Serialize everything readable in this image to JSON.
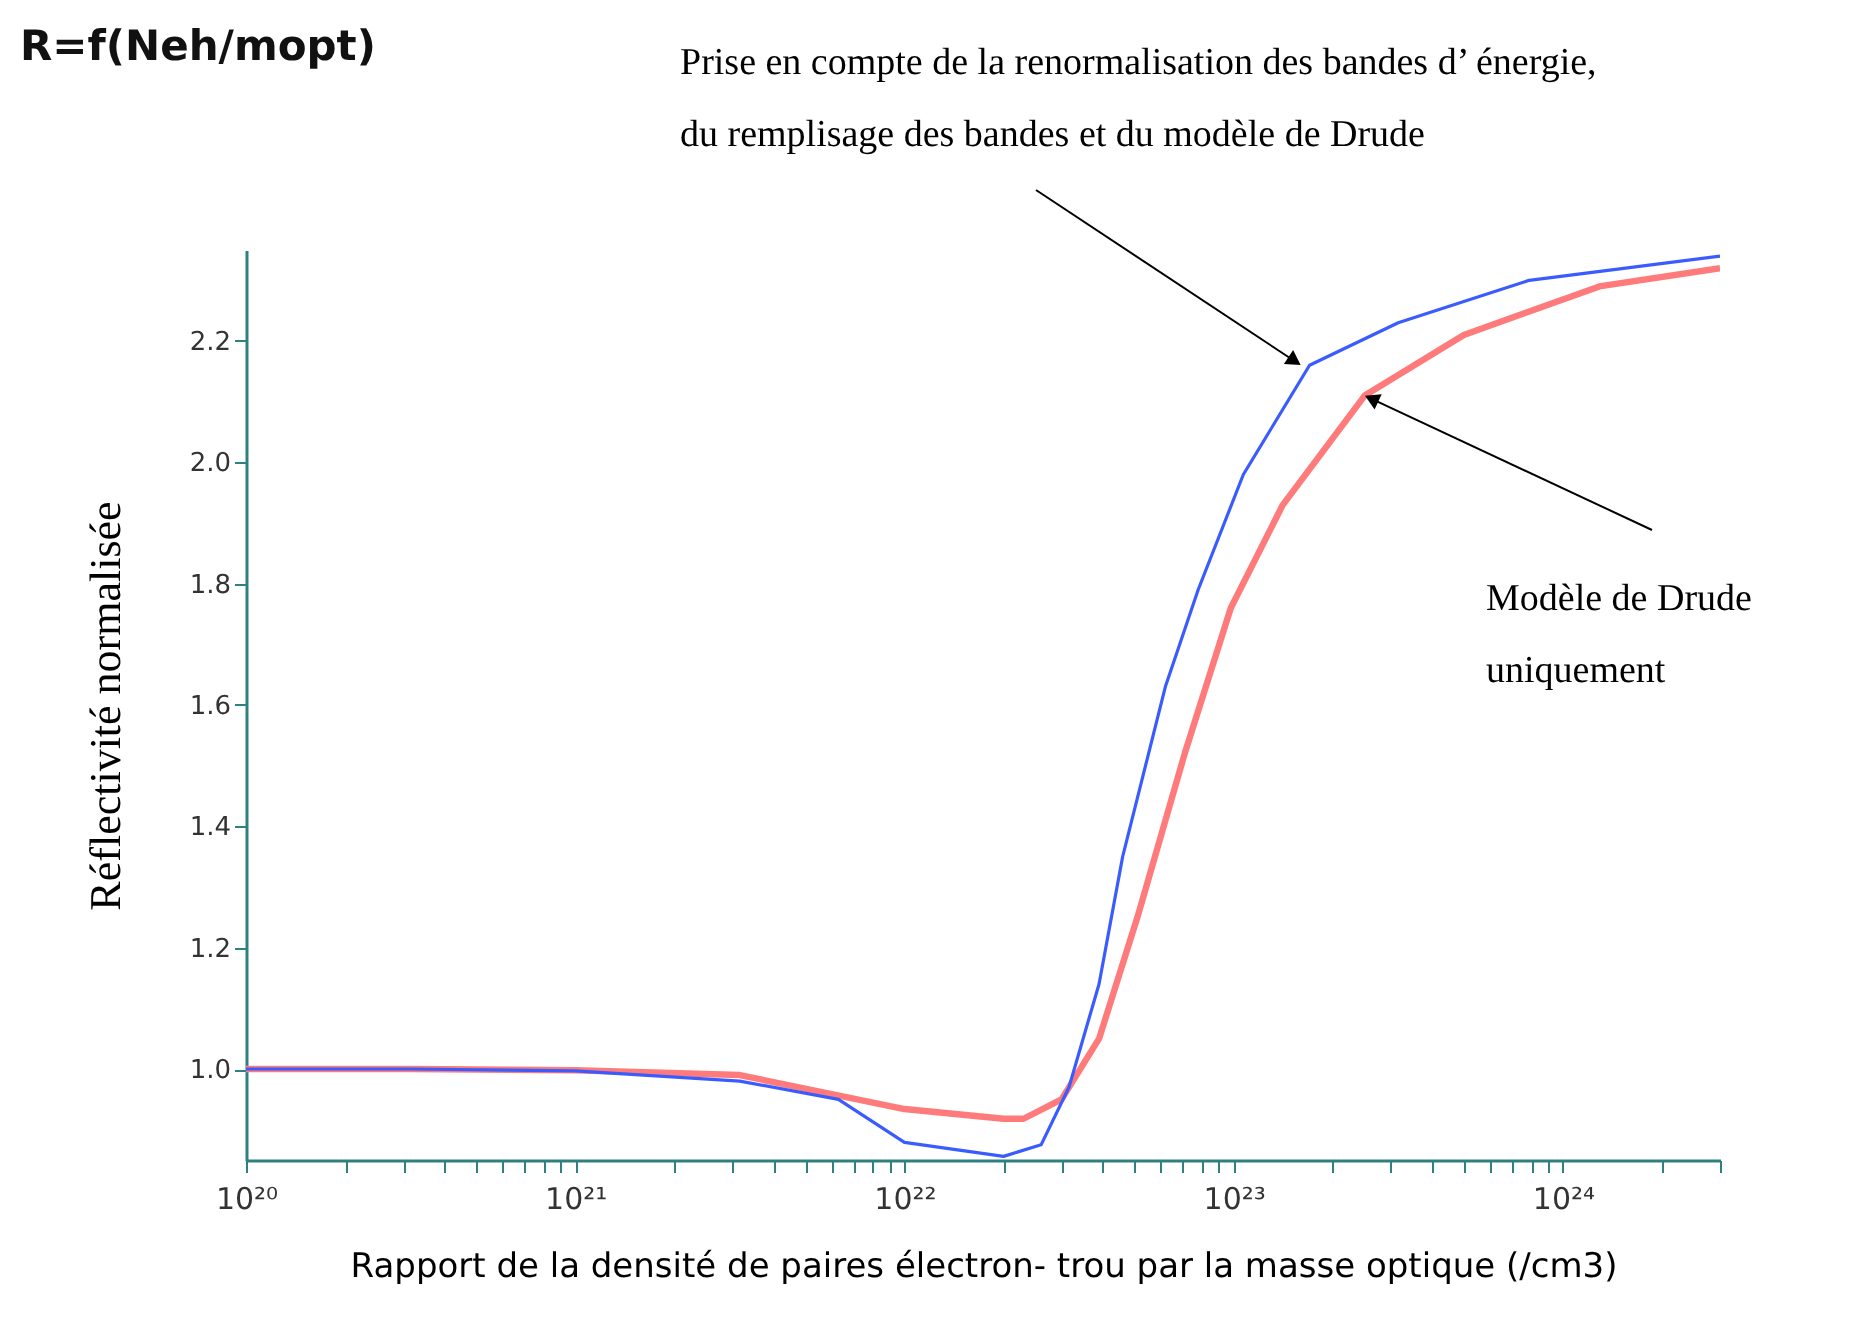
{
  "chart_data": {
    "type": "line",
    "title": "R=f(Neh/mopt)",
    "xlabel": "Rapport de la densité de paires électron- trou par la masse optique (/cm3)",
    "ylabel": "Réflectivité normalisée",
    "log": "x",
    "grid": false,
    "marker": "none",
    "line_style": "solid",
    "xlim": [
      1e+20,
      3e+24
    ],
    "ylim": [
      0.85,
      2.35
    ],
    "xticks": [
      {
        "value": 1e+20,
        "label": "10²⁰"
      },
      {
        "value": 2e+20,
        "label": null
      },
      {
        "value": 3e+20,
        "label": null
      },
      {
        "value": 4e+20,
        "label": null
      },
      {
        "value": 5e+20,
        "label": null
      },
      {
        "value": 6e+20,
        "label": null
      },
      {
        "value": 7e+20,
        "label": null
      },
      {
        "value": 8e+20,
        "label": null
      },
      {
        "value": 9e+20,
        "label": null
      },
      {
        "value": 1e+21,
        "label": "10²¹"
      },
      {
        "value": 2e+21,
        "label": null
      },
      {
        "value": 3e+21,
        "label": null
      },
      {
        "value": 4e+21,
        "label": null
      },
      {
        "value": 5e+21,
        "label": null
      },
      {
        "value": 6e+21,
        "label": null
      },
      {
        "value": 7e+21,
        "label": null
      },
      {
        "value": 8e+21,
        "label": null
      },
      {
        "value": 9e+21,
        "label": null
      },
      {
        "value": 1e+22,
        "label": "10²²"
      },
      {
        "value": 2e+22,
        "label": null
      },
      {
        "value": 3e+22,
        "label": null
      },
      {
        "value": 4e+22,
        "label": null
      },
      {
        "value": 5e+22,
        "label": null
      },
      {
        "value": 6e+22,
        "label": null
      },
      {
        "value": 7e+22,
        "label": null
      },
      {
        "value": 8e+22,
        "label": null
      },
      {
        "value": 9e+22,
        "label": null
      },
      {
        "value": 1e+23,
        "label": "10²³"
      },
      {
        "value": 2e+23,
        "label": null
      },
      {
        "value": 3e+23,
        "label": null
      },
      {
        "value": 4e+23,
        "label": null
      },
      {
        "value": 5e+23,
        "label": null
      },
      {
        "value": 6e+23,
        "label": null
      },
      {
        "value": 7e+23,
        "label": null
      },
      {
        "value": 8e+23,
        "label": null
      },
      {
        "value": 9e+23,
        "label": null
      },
      {
        "value": 1e+24,
        "label": "10²⁴"
      },
      {
        "value": 2e+24,
        "label": null
      },
      {
        "value": 3e+24,
        "label": null
      }
    ],
    "yticks": [
      {
        "value": 1.0,
        "label": "1.0"
      },
      {
        "value": 1.2,
        "label": "1.2"
      },
      {
        "value": 1.4,
        "label": "1.4"
      },
      {
        "value": 1.6,
        "label": "1.6"
      },
      {
        "value": 1.8,
        "label": "1.8"
      },
      {
        "value": 2.0,
        "label": "2.0"
      },
      {
        "value": 2.2,
        "label": "2.2"
      }
    ],
    "series": [
      {
        "color": "#ff7b7b",
        "x": [
          1e+20,
          3.16e+20,
          1e+21,
          3.16e+21,
          1e+22,
          2e+22,
          2.3e+22,
          3e+22,
          3.9e+22,
          5.1e+22,
          7.1e+22,
          9.8e+22,
          1.41e+23,
          2.5e+23,
          5e+23,
          1.29e+24,
          3e+24
        ],
        "values": [
          1.0,
          1.0,
          0.998,
          0.99,
          0.934,
          0.918,
          0.918,
          0.95,
          1.05,
          1.25,
          1.52,
          1.76,
          1.93,
          2.11,
          2.21,
          2.29,
          2.32
        ]
      },
      {
        "color": "#3a5cff",
        "x": [
          1e+20,
          3.16e+20,
          1e+21,
          3.16e+21,
          6.3e+21,
          1e+22,
          2e+22,
          2.6e+22,
          3.16e+22,
          3.9e+22,
          4.6e+22,
          6.2e+22,
          7.8e+22,
          1.07e+23,
          1.7e+23,
          3.16e+23,
          7.9e+23,
          3e+24
        ],
        "values": [
          1.0,
          1.0,
          0.997,
          0.98,
          0.95,
          0.879,
          0.856,
          0.875,
          0.97,
          1.14,
          1.35,
          1.63,
          1.79,
          1.98,
          2.16,
          2.23,
          2.3,
          2.34
        ]
      }
    ],
    "annotations": [
      {
        "text": "Prise en compte de la renormalisation des bandes d’ énergie,\ndu remplisage des bandes et du modèle de Drude",
        "x": 1.6e+23,
        "y": 2.16
      },
      {
        "text": "Modèle de Drude\nuniquement",
        "x": 2.5e+23,
        "y": 2.11
      }
    ]
  }
}
